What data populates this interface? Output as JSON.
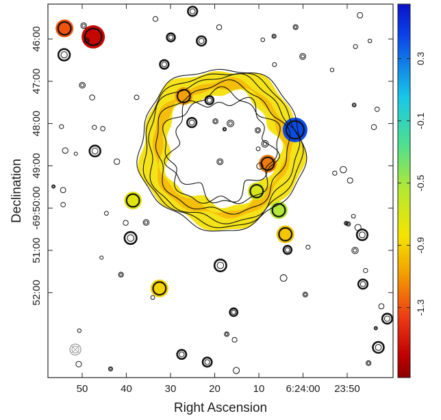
{
  "chart_data": {
    "type": "heatmap",
    "description_kind": "spectral index map with radio contours",
    "xlabel": "Right Ascension",
    "ylabel": "Declination",
    "x_ticks": [
      "50",
      "40",
      "30",
      "20",
      "10",
      "6:24:00",
      "23:50"
    ],
    "y_ticks": [
      "46:00",
      "47:00",
      "48:00",
      "49:00",
      "-69:50:00",
      "51:00",
      "52:00"
    ],
    "colorbar": {
      "ticks": [
        "0.3",
        "-0.1",
        "-0.5",
        "-0.9",
        "-1.3"
      ],
      "tick_values": [
        0.3,
        -0.1,
        -0.5,
        -0.9,
        -1.3
      ],
      "range": [
        0.65,
        -1.75
      ],
      "colors": [
        "#0a12c8",
        "#0a5cf0",
        "#18c8e8",
        "#50e08c",
        "#b8e830",
        "#f4e400",
        "#f4a000",
        "#ec3a14",
        "#c00000",
        "#8c0000"
      ]
    },
    "ring": {
      "center_ra_s": 18.5,
      "center_dec_arcmin": 48.6,
      "radius_arcmin": 1.65
    },
    "ring_spectral_index": -0.7,
    "blobs": [
      {
        "ra_s": 54.0,
        "dec_arcmin": 45.75,
        "alpha": -1.15
      },
      {
        "ra_s": 47.5,
        "dec_arcmin": 45.95,
        "alpha": -1.45
      },
      {
        "ra_s": 27.0,
        "dec_arcmin": 47.35,
        "alpha": -0.95
      },
      {
        "ra_s": 1.8,
        "dec_arcmin": 48.15,
        "alpha": 0.45
      },
      {
        "ra_s": 8.0,
        "dec_arcmin": 48.95,
        "alpha": -1.05
      },
      {
        "ra_s": 10.5,
        "dec_arcmin": 49.6,
        "alpha": -0.55
      },
      {
        "ra_s": 38.5,
        "dec_arcmin": 49.82,
        "alpha": -0.6
      },
      {
        "ra_s": 5.5,
        "dec_arcmin": 50.05,
        "alpha": -0.4
      },
      {
        "ra_s": 4.0,
        "dec_arcmin": 50.62,
        "alpha": -0.8
      },
      {
        "ra_s": 32.5,
        "dec_arcmin": 51.9,
        "alpha": -0.75
      }
    ]
  }
}
